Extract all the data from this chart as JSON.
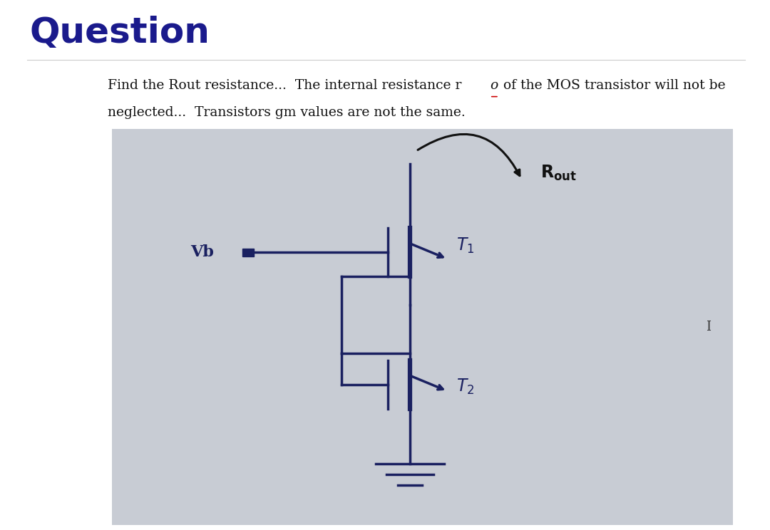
{
  "title": "Question",
  "title_color": "#1a1a8c",
  "title_fontsize": 36,
  "title_fontweight": "bold",
  "separator_color": "#cccccc",
  "text_line1a": "Find the Rout resistance...  The internal resistance r",
  "text_line1b": "o",
  "text_line1c": " of the MOS transistor will not be",
  "text_line2": "neglected...  Transistors gm values are not the same.",
  "text_fontsize": 13.5,
  "text_color": "#111111",
  "outer_bg": "#ffffff",
  "page_bg": "#e8e8e8",
  "circuit_bg": "#c8ccd4",
  "circuit_line_color": "#1a2060",
  "circuit_lw": 2.5,
  "label_I": "I"
}
